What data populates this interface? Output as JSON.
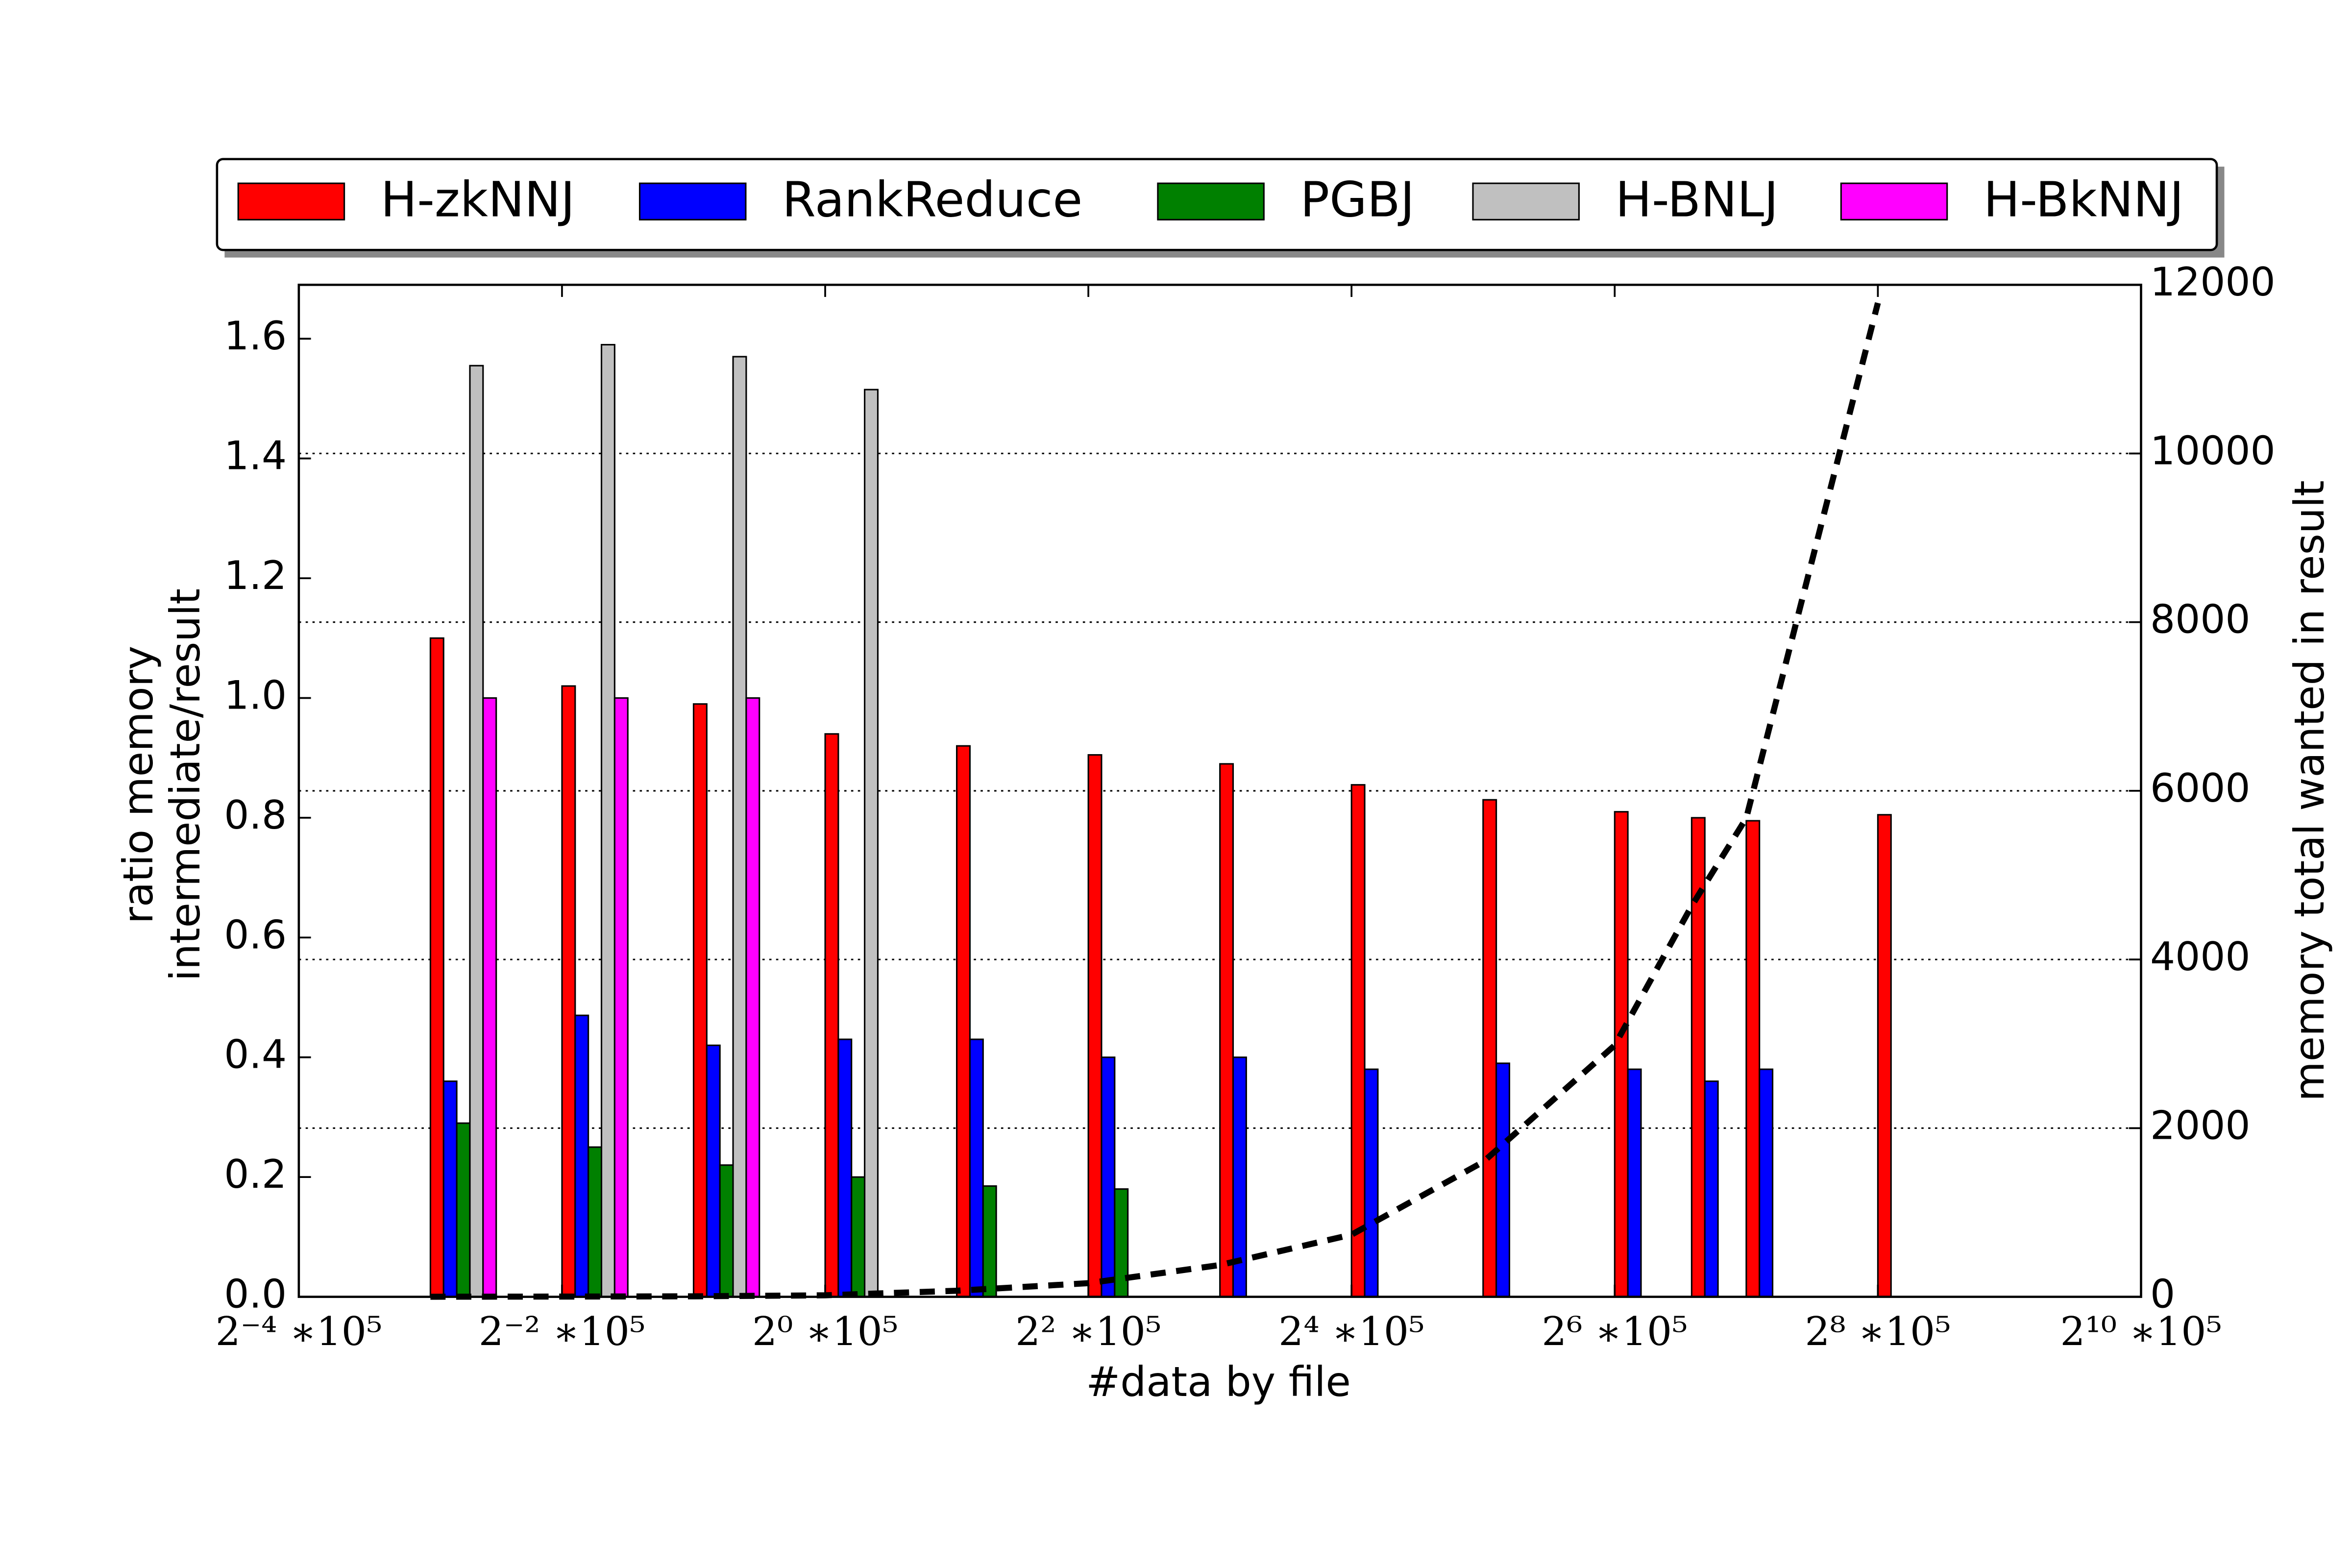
{
  "chart_data": {
    "type": "bar",
    "x_label": "#data by file",
    "y_label": [
      "ratio memory",
      "intermediate/result"
    ],
    "y2_label": "memory total wanted in result",
    "x": [
      0.125,
      0.25,
      0.5,
      1,
      2,
      4,
      8,
      16,
      32,
      64,
      96,
      128,
      256
    ],
    "xscale": "log2",
    "xlim": [
      0.0625,
      1024
    ],
    "xticks": [
      {
        "value": 0.0625,
        "label": "2⁻⁴ ∗10⁵"
      },
      {
        "value": 0.25,
        "label": "2⁻² ∗10⁵"
      },
      {
        "value": 1,
        "label": "2⁰ ∗10⁵"
      },
      {
        "value": 4,
        "label": "2² ∗10⁵"
      },
      {
        "value": 16,
        "label": "2⁴ ∗10⁵"
      },
      {
        "value": 64,
        "label": "2⁶ ∗10⁵"
      },
      {
        "value": 256,
        "label": "2⁸ ∗10⁵"
      },
      {
        "value": 1024,
        "label": "2¹⁰ ∗10⁵"
      }
    ],
    "ylim": [
      0,
      1.69
    ],
    "yticks": [
      {
        "value": 0,
        "label": "0.0"
      },
      {
        "value": 0.2,
        "label": "0.2"
      },
      {
        "value": 0.4,
        "label": "0.4"
      },
      {
        "value": 0.6,
        "label": "0.6"
      },
      {
        "value": 0.8,
        "label": "0.8"
      },
      {
        "value": 1,
        "label": "1.0"
      },
      {
        "value": 1.2,
        "label": "1.2"
      },
      {
        "value": 1.4,
        "label": "1.4"
      },
      {
        "value": 1.6,
        "label": "1.6"
      }
    ],
    "y2lim": [
      0,
      12000
    ],
    "y2ticks": [
      0,
      2000,
      4000,
      6000,
      8000,
      10000,
      12000
    ],
    "grid": "y2",
    "legend": "top",
    "series": [
      {
        "name": "H-zkNNJ",
        "color": "#ff0000",
        "values": [
          1.1,
          1.02,
          0.99,
          0.94,
          0.92,
          0.905,
          0.89,
          0.855,
          0.83,
          0.81,
          0.8,
          0.795,
          0.805
        ]
      },
      {
        "name": "RankReduce",
        "color": "#0000ff",
        "values": [
          0.36,
          0.47,
          0.42,
          0.43,
          0.43,
          0.4,
          0.4,
          0.38,
          0.39,
          0.38,
          0.36,
          0.38,
          null
        ]
      },
      {
        "name": "PGBJ",
        "color": "#008000",
        "values": [
          0.29,
          0.25,
          0.22,
          0.2,
          0.185,
          0.18,
          null,
          null,
          null,
          null,
          null,
          null,
          null
        ]
      },
      {
        "name": "H-BNLJ",
        "color": "#c0c0c0",
        "values": [
          1.555,
          1.59,
          1.57,
          1.515,
          null,
          null,
          null,
          null,
          null,
          null,
          null,
          null,
          null
        ]
      },
      {
        "name": "H-BkNNJ",
        "color": "#ff00ff",
        "values": [
          1.0,
          1.0,
          1.0,
          null,
          null,
          null,
          null,
          null,
          null,
          null,
          null,
          null,
          null
        ]
      }
    ],
    "line": {
      "color": "#000000",
      "axis": "y2",
      "style": "dashed",
      "values": [
        1,
        3,
        6,
        18,
        72,
        162,
        377,
        737,
        1599,
        2982,
        4635,
        5677,
        11785
      ]
    }
  }
}
